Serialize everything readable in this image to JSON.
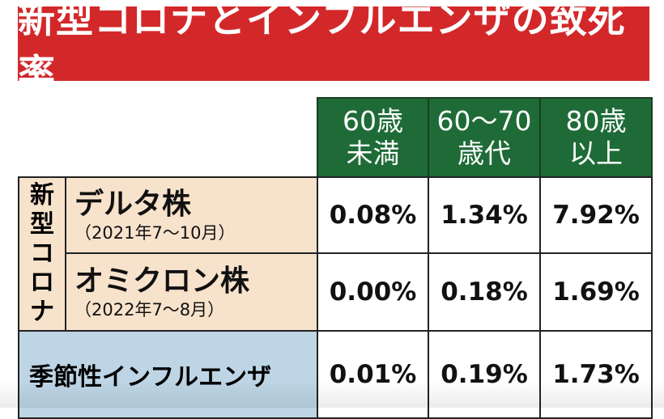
{
  "title": "新型コロナとインフルエンザの致死率",
  "colors": {
    "title_bg": "#d3282a",
    "header_bg": "#1e6b37",
    "covid_bg": "#f7e2cb",
    "flu_bg": "#bdd5e4"
  },
  "chart_data": {
    "type": "table",
    "title": "新型コロナとインフルエンザの致死率",
    "columns": [
      {
        "line1": "60歳",
        "line2": "未満"
      },
      {
        "line1": "60〜70",
        "line2": "歳代"
      },
      {
        "line1": "80歳",
        "line2": "以上"
      }
    ],
    "group_label": [
      "新",
      "型",
      "コ",
      "ロ",
      "ナ"
    ],
    "rows": [
      {
        "name": "デルタ株",
        "period": "（2021年7〜10月）",
        "values": [
          "0.08%",
          "1.34%",
          "7.92%"
        ]
      },
      {
        "name": "オミクロン株",
        "period": "（2022年7〜8月）",
        "values": [
          "0.00%",
          "0.18%",
          "1.69%"
        ]
      },
      {
        "name": "季節性インフルエンザ",
        "values": [
          "0.01%",
          "0.19%",
          "1.73%"
        ]
      }
    ]
  }
}
